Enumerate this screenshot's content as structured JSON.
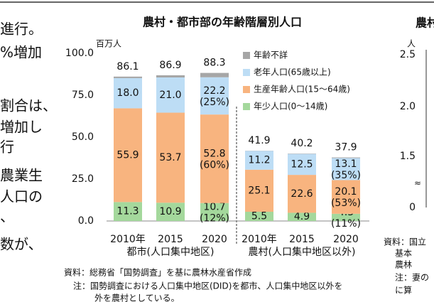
{
  "left_column": {
    "lines": [
      "進行。",
      "%増加",
      "割合は、",
      "増加し",
      "行",
      "農業生",
      "人口の",
      "、",
      "数が、"
    ]
  },
  "chart_data": {
    "type": "stacked_bar",
    "title": "農村・都市部の年齢階層別人口",
    "y_unit": "百万人",
    "categories": [
      "2010年",
      "2015",
      "2020",
      "2010年",
      "2015",
      "2020"
    ],
    "groups": [
      "都市(人口集中地区)",
      "農村(人口集中地区以外)"
    ],
    "ylim": [
      0,
      100
    ],
    "yticks": [
      {
        "value": 0,
        "label": "0.0"
      },
      {
        "value": 25,
        "label": "25.0"
      },
      {
        "value": 50,
        "label": "50.0"
      },
      {
        "value": 75,
        "label": "75.0"
      },
      {
        "value": 100,
        "label": "100.0"
      }
    ],
    "totals": [
      86.1,
      86.9,
      88.3,
      41.9,
      40.2,
      37.9
    ],
    "series": [
      {
        "name": "年齢不詳",
        "color": "#a6a6a6",
        "values": [
          0.9,
          1.3,
          2.6,
          0.1,
          0.2,
          0.4
        ]
      },
      {
        "name": "老年人口(65歳以上)",
        "color": "#bdddf5",
        "values": [
          18.0,
          21.0,
          22.2,
          11.2,
          12.5,
          13.1
        ],
        "value_labels": [
          "18.0",
          "21.0",
          "22.2",
          "11.2",
          "12.5",
          "13.1"
        ],
        "share_labels": [
          null,
          null,
          "(25%)",
          null,
          null,
          "(35%)"
        ]
      },
      {
        "name": "生産年齢人口(15～64歳)",
        "color": "#f8b47f",
        "values": [
          55.9,
          53.7,
          52.8,
          25.1,
          22.6,
          20.1
        ],
        "value_labels": [
          "55.9",
          "53.7",
          "52.8",
          "25.1",
          "22.6",
          "20.1"
        ],
        "share_labels": [
          null,
          null,
          "(60%)",
          null,
          null,
          "(53%)"
        ]
      },
      {
        "name": "年少人口(0～14歳)",
        "color": "#a4d89c",
        "values": [
          11.3,
          10.9,
          10.7,
          5.5,
          4.9,
          4.3
        ],
        "value_labels": [
          "11.3",
          "10.9",
          "10.7",
          "5.5",
          "4.9",
          "4.3"
        ],
        "share_labels": [
          null,
          null,
          "(12%)",
          null,
          null,
          "(11%)"
        ]
      }
    ]
  },
  "notes": {
    "source": "資料：総務省「国勢調査」を基に農林水産省作成",
    "note": "注：国勢調査における人口集中地区(DID)を都市、人口集中地区以外を",
    "note_cont": "外を農村としている。"
  },
  "right_fragment": {
    "title": "農村",
    "unit": "人",
    "axis_labels": [
      "2.5",
      "2.0",
      "1.5",
      "0"
    ],
    "break": "≈",
    "notes": [
      "資料：国立",
      "基本",
      "農林",
      "注：妻の",
      "に算"
    ]
  }
}
